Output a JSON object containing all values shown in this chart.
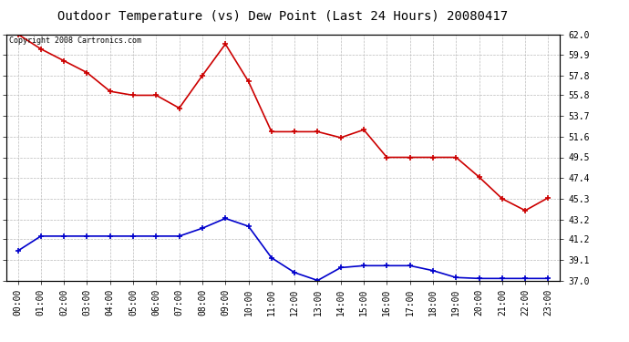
{
  "title": "Outdoor Temperature (vs) Dew Point (Last 24 Hours) 20080417",
  "copyright": "Copyright 2008 Cartronics.com",
  "x_labels": [
    "00:00",
    "01:00",
    "02:00",
    "03:00",
    "04:00",
    "05:00",
    "06:00",
    "07:00",
    "08:00",
    "09:00",
    "10:00",
    "11:00",
    "12:00",
    "13:00",
    "14:00",
    "15:00",
    "16:00",
    "17:00",
    "18:00",
    "19:00",
    "20:00",
    "21:00",
    "22:00",
    "23:00"
  ],
  "temp_data": [
    62.0,
    60.5,
    59.3,
    58.1,
    56.2,
    55.8,
    55.8,
    54.5,
    57.8,
    61.0,
    57.2,
    52.1,
    52.1,
    52.1,
    51.5,
    52.3,
    49.5,
    49.5,
    49.5,
    49.5,
    47.5,
    45.3,
    44.1,
    45.4
  ],
  "dew_data": [
    40.0,
    41.5,
    41.5,
    41.5,
    41.5,
    41.5,
    41.5,
    41.5,
    42.3,
    43.3,
    42.5,
    39.3,
    37.8,
    37.0,
    38.3,
    38.5,
    38.5,
    38.5,
    38.0,
    37.3,
    37.2,
    37.2,
    37.2,
    37.2
  ],
  "temp_color": "#cc0000",
  "dew_color": "#0000cc",
  "background_color": "#ffffff",
  "grid_color": "#bbbbbb",
  "ylim": [
    37.0,
    62.0
  ],
  "yticks_right": [
    62.0,
    59.9,
    57.8,
    55.8,
    53.7,
    51.6,
    49.5,
    47.4,
    45.3,
    43.2,
    41.2,
    39.1,
    37.0
  ],
  "title_fontsize": 10,
  "tick_fontsize": 7,
  "copyright_fontsize": 6
}
